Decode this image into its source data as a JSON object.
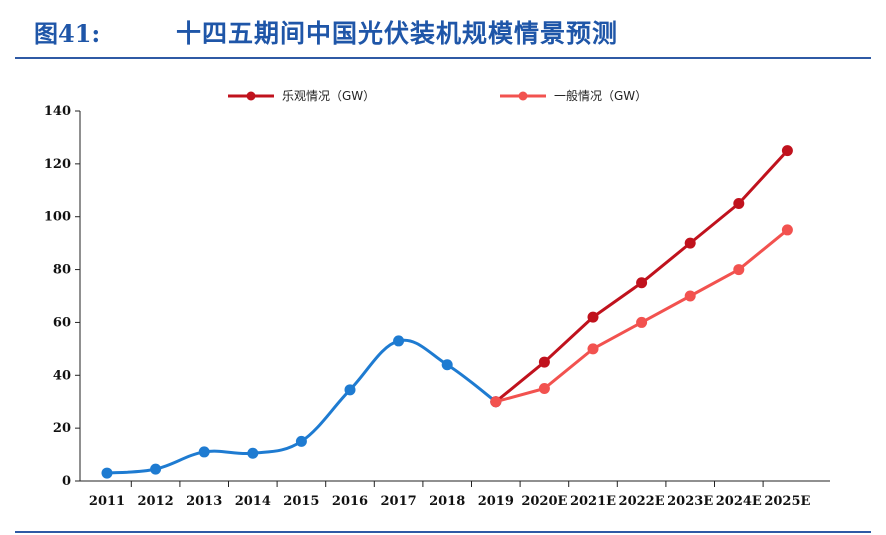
{
  "figure": {
    "number": "图41:",
    "title": "十四五期间中国光伏装机规模情景预测"
  },
  "chart_data": {
    "type": "line",
    "title": "十四五期间中国光伏装机规模情景预测",
    "xlabel": "",
    "ylabel": "",
    "categories": [
      "2011",
      "2012",
      "2013",
      "2014",
      "2015",
      "2016",
      "2017",
      "2018",
      "2019",
      "2020E",
      "2021E",
      "2022E",
      "2023E",
      "2024E",
      "2025E"
    ],
    "ylim": [
      0,
      140
    ],
    "yticks": [
      0,
      20,
      40,
      60,
      80,
      100,
      120,
      140
    ],
    "grid": false,
    "legend_position": "top",
    "series": [
      {
        "name": "",
        "color": "#1e7bd1",
        "smooth": true,
        "values": [
          3,
          4.5,
          11,
          10.5,
          15,
          34.5,
          53,
          44,
          30,
          null,
          null,
          null,
          null,
          null,
          null
        ]
      },
      {
        "name": "乐观情况（GW）",
        "color": "#c0121d",
        "smooth": false,
        "values": [
          null,
          null,
          null,
          null,
          null,
          null,
          null,
          null,
          30,
          45,
          62,
          75,
          90,
          105,
          125
        ]
      },
      {
        "name": "一般情况（GW）",
        "color": "#f2524f",
        "smooth": false,
        "values": [
          null,
          null,
          null,
          null,
          null,
          null,
          null,
          null,
          30,
          35,
          50,
          60,
          70,
          80,
          95
        ]
      }
    ]
  }
}
